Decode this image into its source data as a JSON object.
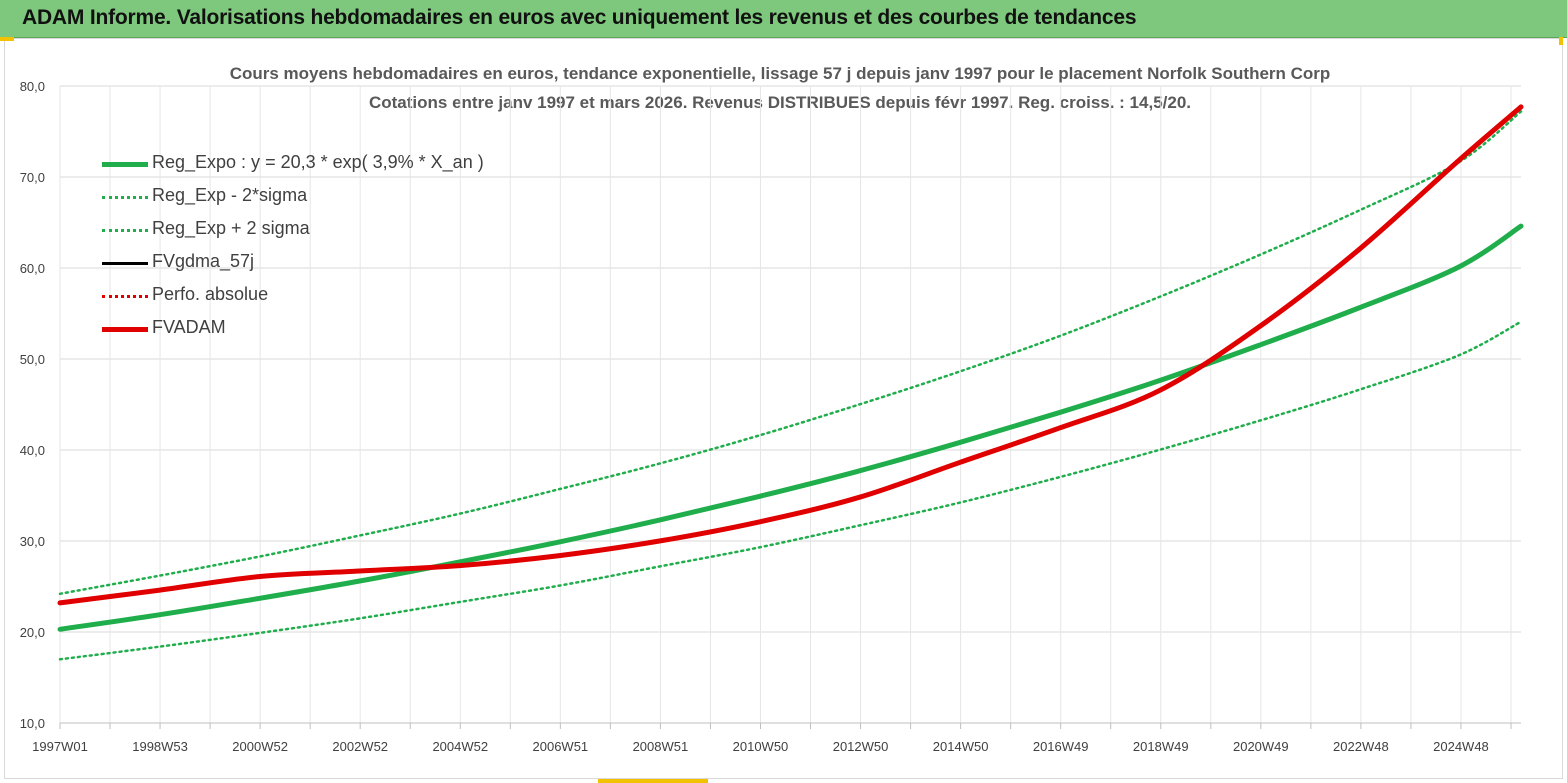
{
  "banner": {
    "title": "ADAM Informe. Valorisations hebdomadaires en euros avec uniquement les revenus et des courbes de tendances"
  },
  "chart_data": {
    "type": "line",
    "title_line1": "Cours moyens hebdomadaires en euros, tendance exponentielle, lissage 57 j depuis janv 1997 pour le placement Norfolk Southern Corp",
    "title_line2": "Cotations entre janv 1997 et mars 2026. Revenus DISTRIBUES depuis févr 1997. Reg. croiss. : 14,5/20.",
    "xlabel": "",
    "ylabel": "",
    "ylim": [
      10,
      80
    ],
    "yticks": [
      "10,0",
      "20,0",
      "30,0",
      "40,0",
      "50,0",
      "60,0",
      "70,0",
      "80,0"
    ],
    "xlim": [
      1997.0,
      2026.25
    ],
    "xtick_labels": [
      "1997W01",
      "1998W53",
      "2000W52",
      "2002W52",
      "2004W52",
      "2006W51",
      "2008W51",
      "2010W50",
      "2012W50",
      "2014W50",
      "2016W49",
      "2018W49",
      "2020W49",
      "2022W48",
      "2024W48"
    ],
    "grid": true,
    "legend_position": "top-left",
    "series": [
      {
        "name": "Reg_Expo : y = 20,3 * exp( 3,9% *  X_an )",
        "color": "#1fae4b",
        "style": "solid-thick",
        "x": [
          1997,
          1999,
          2001,
          2003,
          2005,
          2007,
          2009,
          2011,
          2013,
          2015,
          2017,
          2019,
          2021,
          2023,
          2025,
          2026.25
        ],
        "y": [
          20.3,
          21.9,
          23.7,
          25.6,
          27.7,
          29.9,
          32.3,
          34.9,
          37.7,
          40.8,
          44.1,
          47.6,
          51.5,
          55.6,
          60.1,
          64.6
        ]
      },
      {
        "name": "Reg_Exp - 2*sigma",
        "color": "#1fae4b",
        "style": "dotted",
        "x": [
          1997,
          1999,
          2001,
          2003,
          2005,
          2007,
          2009,
          2011,
          2013,
          2015,
          2017,
          2019,
          2021,
          2023,
          2025,
          2026.25
        ],
        "y": [
          17.0,
          18.4,
          19.9,
          21.5,
          23.3,
          25.1,
          27.2,
          29.3,
          31.7,
          34.2,
          37.0,
          40.0,
          43.2,
          46.6,
          50.4,
          54.1
        ]
      },
      {
        "name": "Reg_Exp + 2 sigma",
        "color": "#1fae4b",
        "style": "dotted",
        "x": [
          1997,
          1999,
          2001,
          2003,
          2005,
          2007,
          2009,
          2011,
          2013,
          2015,
          2017,
          2019,
          2021,
          2023,
          2025,
          2026.25
        ],
        "y": [
          24.2,
          26.2,
          28.3,
          30.6,
          33.0,
          35.7,
          38.5,
          41.6,
          45.0,
          48.6,
          52.5,
          56.8,
          61.4,
          66.3,
          71.6,
          77.2
        ]
      },
      {
        "name": "FVgdma_57j",
        "color": "#000000",
        "style": "solid",
        "x": [
          1997,
          1999,
          2001,
          2003,
          2005,
          2007,
          2009,
          2011,
          2013,
          2015,
          2017,
          2019,
          2021,
          2023,
          2025,
          2026.25
        ],
        "y": [
          23.2,
          24.6,
          26.1,
          26.7,
          27.3,
          28.4,
          30.0,
          32.1,
          34.8,
          38.6,
          42.4,
          46.5,
          53.5,
          62.0,
          71.8,
          77.7
        ]
      },
      {
        "name": "Perfo. absolue",
        "color": "#e00000",
        "style": "dotted",
        "x": [
          1997,
          1999,
          2001,
          2003,
          2005,
          2007,
          2009,
          2011,
          2013,
          2015,
          2017,
          2019,
          2021,
          2023,
          2025,
          2026.25
        ],
        "y": [
          23.2,
          24.6,
          26.1,
          26.7,
          27.3,
          28.4,
          30.0,
          32.1,
          34.8,
          38.6,
          42.4,
          46.5,
          53.5,
          62.0,
          71.8,
          77.7
        ]
      },
      {
        "name": "FVADAM",
        "color": "#e00000",
        "style": "solid-thick",
        "x": [
          1997,
          1999,
          2001,
          2003,
          2005,
          2007,
          2009,
          2011,
          2013,
          2015,
          2017,
          2019,
          2021,
          2023,
          2025,
          2026.25
        ],
        "y": [
          23.2,
          24.6,
          26.1,
          26.7,
          27.3,
          28.4,
          30.0,
          32.1,
          34.8,
          38.6,
          42.4,
          46.5,
          53.5,
          62.0,
          71.8,
          77.7
        ]
      }
    ]
  }
}
